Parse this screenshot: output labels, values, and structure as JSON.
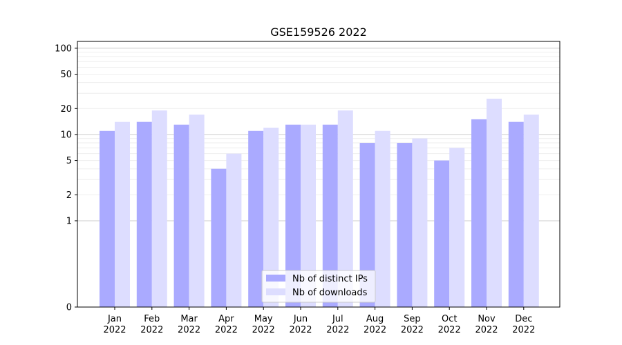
{
  "chart_data": {
    "type": "bar",
    "title": "GSE159526 2022",
    "xlabel": "",
    "ylabel": "",
    "y_scale": "symlog",
    "ylim": [
      0,
      120
    ],
    "y_ticks": [
      0,
      1,
      2,
      5,
      10,
      20,
      50,
      100
    ],
    "y_tick_labels": [
      "0",
      "1",
      "2",
      "5",
      "10",
      "20",
      "50",
      "100"
    ],
    "grid": true,
    "legend_position": "bottom-center",
    "categories": [
      "Jan\n2022",
      "Feb\n2022",
      "Mar\n2022",
      "Apr\n2022",
      "May\n2022",
      "Jun\n2022",
      "Jul\n2022",
      "Aug\n2022",
      "Sep\n2022",
      "Oct\n2022",
      "Nov\n2022",
      "Dec\n2022"
    ],
    "series": [
      {
        "name": "Nb of distinct IPs",
        "color": "#aaaaff",
        "values": [
          11,
          14,
          13,
          4,
          11,
          13,
          13,
          8,
          8,
          5,
          15,
          14
        ]
      },
      {
        "name": "Nb of downloads",
        "color": "#ddddff",
        "values": [
          14,
          19,
          17,
          6,
          12,
          13,
          19,
          11,
          9,
          7,
          26,
          17
        ]
      }
    ]
  }
}
